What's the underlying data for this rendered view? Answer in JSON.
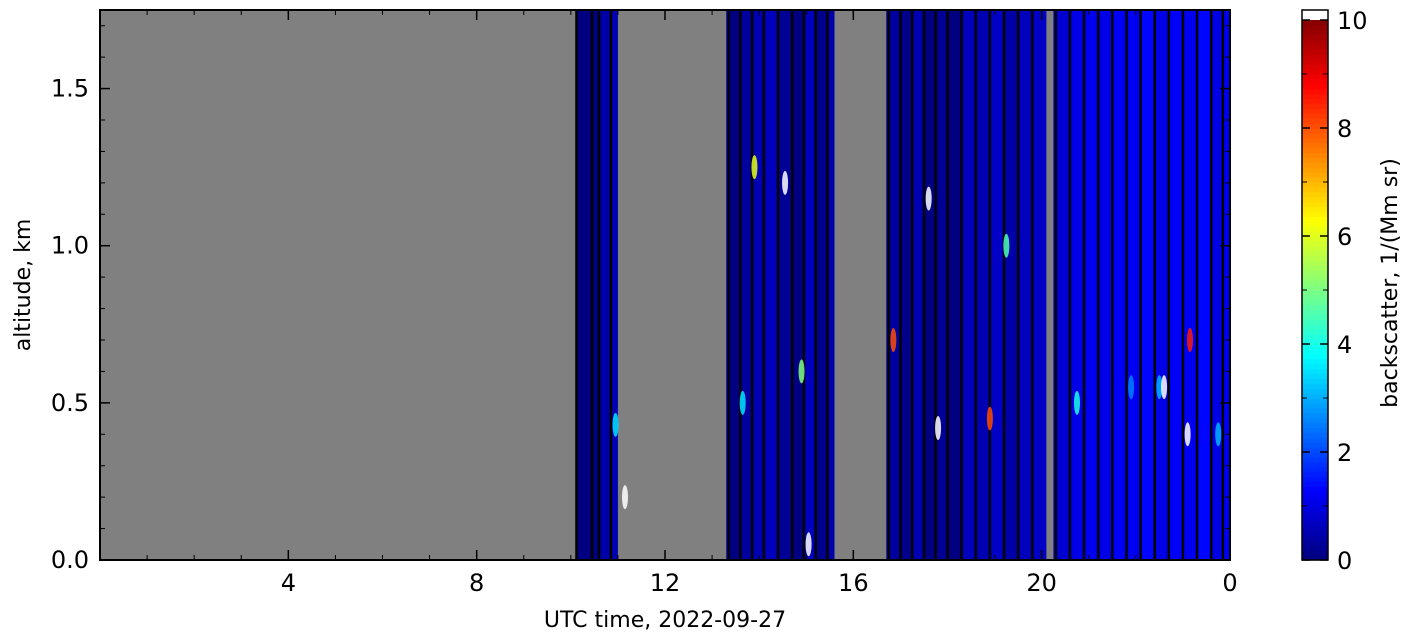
{
  "chart_data": {
    "type": "heatmap",
    "title": "",
    "xlabel": "UTC time,  2022-09-27",
    "ylabel": "altitude, km",
    "x_ticks": [
      "4",
      "8",
      "12",
      "16",
      "20",
      "0"
    ],
    "x_tick_hours": [
      4,
      8,
      12,
      16,
      20,
      24
    ],
    "y_ticks": [
      "0.0",
      "0.5",
      "1.0",
      "1.5"
    ],
    "y_tick_values": [
      0.0,
      0.5,
      1.0,
      1.5
    ],
    "xlim_hours": [
      0,
      24
    ],
    "ylim_km": [
      0,
      1.75
    ],
    "missing_color": "#808080",
    "missing_intervals_hours": [
      [
        0,
        10.1
      ],
      [
        11.0,
        13.3
      ],
      [
        15.6,
        16.7
      ],
      [
        20.1,
        20.25
      ]
    ],
    "colorbar": {
      "label": "backscatter, 1/(Mm sr)",
      "ticks": [
        "0",
        "2",
        "4",
        "6",
        "8",
        "10"
      ],
      "tick_values": [
        0,
        2,
        4,
        6,
        8,
        10
      ],
      "range": [
        0,
        10
      ],
      "colormap": "jet",
      "over_color": "#ffffff"
    },
    "series": [
      {
        "x_hours": 10.12,
        "value": 0.0
      },
      {
        "x_hours": 10.45,
        "value": 0.0
      },
      {
        "x_hours": 10.6,
        "value": 0.4
      },
      {
        "x_hours": 10.85,
        "value": 0.5
      },
      {
        "x_hours": 13.35,
        "value": 0.0
      },
      {
        "x_hours": 13.6,
        "value": 0.3
      },
      {
        "x_hours": 13.85,
        "value": 0.5
      },
      {
        "x_hours": 14.1,
        "value": 0.6
      },
      {
        "x_hours": 14.4,
        "value": 0.2
      },
      {
        "x_hours": 14.7,
        "value": 0.0
      },
      {
        "x_hours": 14.95,
        "value": 0.6
      },
      {
        "x_hours": 15.2,
        "value": 0.1
      },
      {
        "x_hours": 15.45,
        "value": 0.4
      },
      {
        "x_hours": 16.75,
        "value": 0.3
      },
      {
        "x_hours": 17.0,
        "value": 0.1
      },
      {
        "x_hours": 17.25,
        "value": 0.5
      },
      {
        "x_hours": 17.5,
        "value": 0.0
      },
      {
        "x_hours": 17.75,
        "value": 0.2
      },
      {
        "x_hours": 18.0,
        "value": 0.0
      },
      {
        "x_hours": 18.3,
        "value": 0.6
      },
      {
        "x_hours": 18.6,
        "value": 0.5
      },
      {
        "x_hours": 18.9,
        "value": 0.7
      },
      {
        "x_hours": 19.2,
        "value": 0.4
      },
      {
        "x_hours": 19.5,
        "value": 0.6
      },
      {
        "x_hours": 19.8,
        "value": 0.7
      },
      {
        "x_hours": 20.3,
        "value": 0.8
      },
      {
        "x_hours": 20.6,
        "value": 1.0
      },
      {
        "x_hours": 20.9,
        "value": 1.1
      },
      {
        "x_hours": 21.2,
        "value": 1.0
      },
      {
        "x_hours": 21.5,
        "value": 1.2
      },
      {
        "x_hours": 21.8,
        "value": 1.1
      },
      {
        "x_hours": 22.1,
        "value": 1.3
      },
      {
        "x_hours": 22.4,
        "value": 1.0
      },
      {
        "x_hours": 22.7,
        "value": 1.2
      },
      {
        "x_hours": 23.0,
        "value": 1.1
      },
      {
        "x_hours": 23.3,
        "value": 1.3
      },
      {
        "x_hours": 23.6,
        "value": 1.0
      },
      {
        "x_hours": 23.85,
        "value": 1.2
      }
    ],
    "speckles": [
      {
        "x_hours": 10.95,
        "y_km": 0.43,
        "value": 3.5
      },
      {
        "x_hours": 11.15,
        "y_km": 0.2,
        "value": 10.5
      },
      {
        "x_hours": 13.9,
        "y_km": 1.25,
        "value": 6.0
      },
      {
        "x_hours": 13.65,
        "y_km": 0.5,
        "value": 3.5
      },
      {
        "x_hours": 14.55,
        "y_km": 1.2,
        "value": 10.5
      },
      {
        "x_hours": 14.9,
        "y_km": 0.6,
        "value": 5.0
      },
      {
        "x_hours": 15.05,
        "y_km": 0.05,
        "value": 10.5
      },
      {
        "x_hours": 16.85,
        "y_km": 0.7,
        "value": 8.0
      },
      {
        "x_hours": 17.6,
        "y_km": 1.15,
        "value": 10.5
      },
      {
        "x_hours": 17.8,
        "y_km": 0.42,
        "value": 10.5
      },
      {
        "x_hours": 18.9,
        "y_km": 0.45,
        "value": 8.0
      },
      {
        "x_hours": 19.25,
        "y_km": 1.0,
        "value": 4.5
      },
      {
        "x_hours": 20.75,
        "y_km": 0.5,
        "value": 4.0
      },
      {
        "x_hours": 21.9,
        "y_km": 0.55,
        "value": 2.5
      },
      {
        "x_hours": 22.5,
        "y_km": 0.55,
        "value": 3.0
      },
      {
        "x_hours": 22.6,
        "y_km": 0.55,
        "value": 10.5
      },
      {
        "x_hours": 23.15,
        "y_km": 0.7,
        "value": 8.5
      },
      {
        "x_hours": 23.1,
        "y_km": 0.4,
        "value": 10.5
      },
      {
        "x_hours": 23.75,
        "y_km": 0.4,
        "value": 3.0
      }
    ]
  }
}
